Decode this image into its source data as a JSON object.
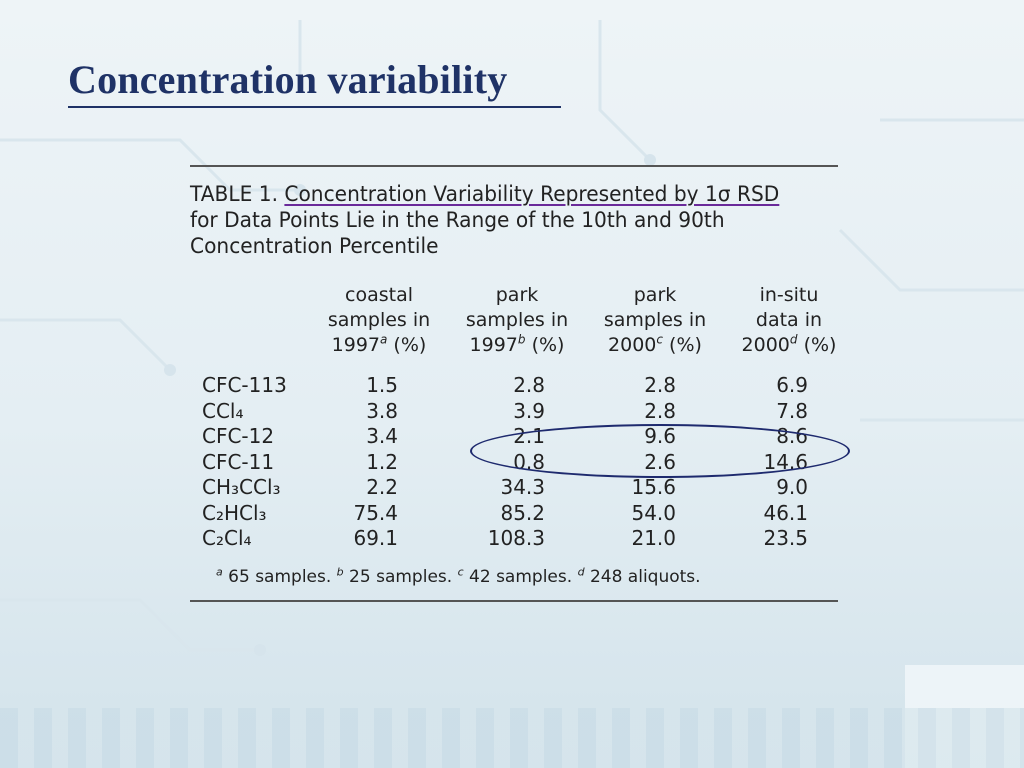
{
  "slide": {
    "title": "Concentration variability"
  },
  "table": {
    "caption_prefix": "TABLE 1. ",
    "caption_link": "Concentration Variability Represented by 1σ RSD",
    "caption_rest": " for Data Points Lie in the Range of the 10th and 90th Concentration Percentile",
    "columns": [
      {
        "line1": "coastal",
        "line2": "samples in",
        "year": "1997",
        "note": "a",
        "unit": " (%)"
      },
      {
        "line1": "park",
        "line2": "samples in",
        "year": "1997",
        "note": "b",
        "unit": " (%)"
      },
      {
        "line1": "park",
        "line2": "samples in",
        "year": "2000",
        "note": "c",
        "unit": " (%)"
      },
      {
        "line1": "in-situ",
        "line2": "data in",
        "year": "2000",
        "note": "d",
        "unit": " (%)"
      }
    ],
    "rows": [
      {
        "compound": "CFC-113",
        "values": [
          "1.5",
          "2.8",
          "2.8",
          "6.9"
        ]
      },
      {
        "compound": "CCl₄",
        "values": [
          "3.8",
          "3.9",
          "2.8",
          "7.8"
        ]
      },
      {
        "compound": "CFC-12",
        "values": [
          "3.4",
          "2.1",
          "9.6",
          "8.6"
        ]
      },
      {
        "compound": "CFC-11",
        "values": [
          "1.2",
          "0.8",
          "2.6",
          "14.6"
        ]
      },
      {
        "compound": "CH₃CCl₃",
        "values": [
          "2.2",
          "34.3",
          "15.6",
          "9.0"
        ]
      },
      {
        "compound": "C₂HCl₃",
        "values": [
          "75.4",
          "85.2",
          "54.0",
          "46.1"
        ]
      },
      {
        "compound": "C₂Cl₄",
        "values": [
          "69.1",
          "108.3",
          "21.0",
          "23.5"
        ]
      }
    ],
    "footnotes": [
      {
        "mark": "a",
        "text": " 65 samples. "
      },
      {
        "mark": "b",
        "text": " 25 samples. "
      },
      {
        "mark": "c",
        "text": " 42 samples. "
      },
      {
        "mark": "d",
        "text": " 248 aliquots."
      }
    ]
  },
  "colors": {
    "title": "#1f3266",
    "oval": "#1e2a6e",
    "caption_underline": "#6a2a9a"
  }
}
